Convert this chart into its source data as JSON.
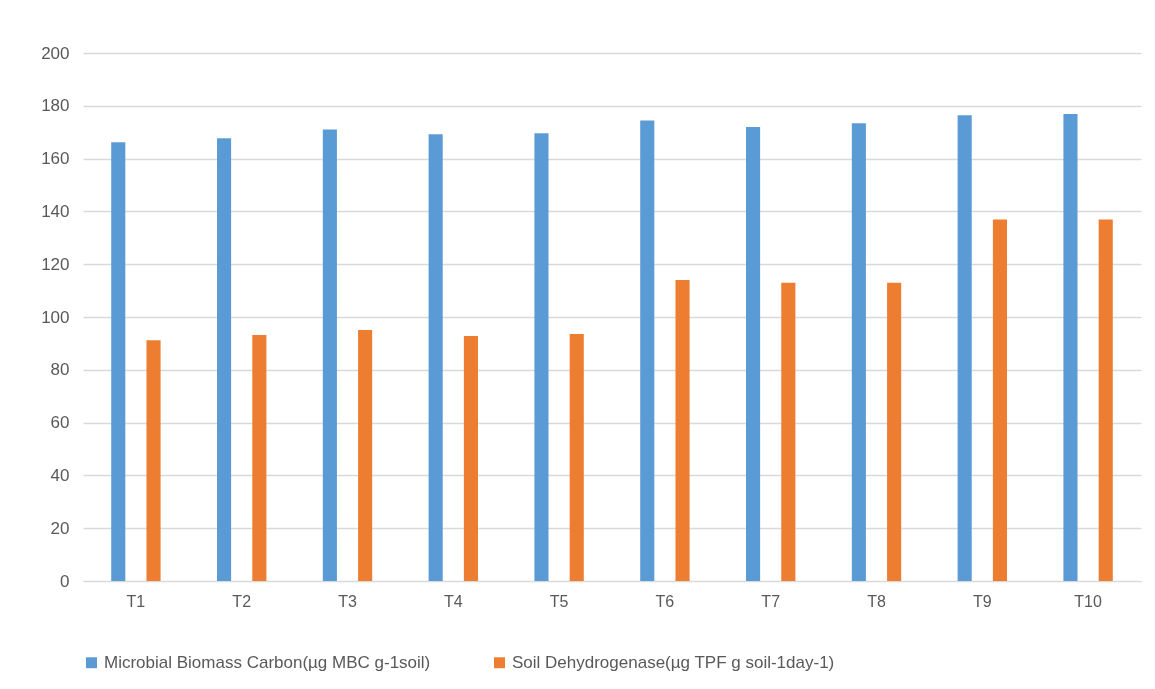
{
  "chart_data": {
    "type": "bar",
    "categories": [
      "T1",
      "T2",
      "T3",
      "T4",
      "T5",
      "T6",
      "T7",
      "T8",
      "T9",
      "T10"
    ],
    "series": [
      {
        "name": "Microbial Biomass Carbon(µg MBC g-1soil)",
        "color": "#5b9bd5",
        "values": [
          166.2,
          167.7,
          171,
          169.2,
          169.6,
          174.4,
          172,
          173.4,
          176.4,
          176.9
        ]
      },
      {
        "name": "Soil Dehydrogenase(µg TPF g soil-1day-1)",
        "color": "#ed7d31",
        "values": [
          91.2,
          93.2,
          95.1,
          92.8,
          93.6,
          114,
          113,
          113,
          136.9,
          136.9
        ]
      }
    ],
    "ylim": [
      0,
      200
    ],
    "yticks": [
      0,
      20,
      40,
      60,
      80,
      100,
      120,
      140,
      160,
      180,
      200
    ],
    "grid": "y",
    "legend": "bottom"
  }
}
